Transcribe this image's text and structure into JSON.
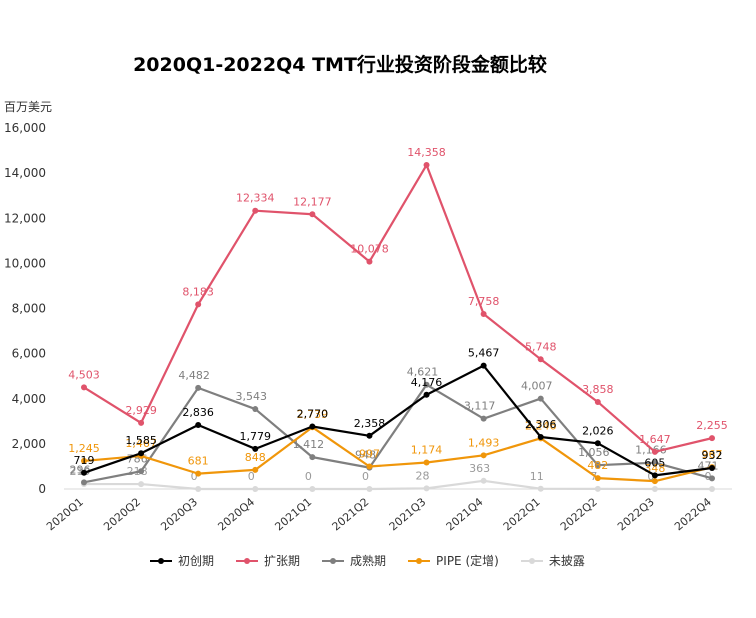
{
  "chart_data": {
    "type": "line",
    "title": "2020Q1-2022Q4 TMT行业投资阶段金额比较",
    "ylabel": "百万美元",
    "ylim": [
      0,
      16000
    ],
    "yticks": [
      "0",
      "2,000",
      "4,000",
      "6,000",
      "8,000",
      "10,000",
      "12,000",
      "14,000",
      "16,000"
    ],
    "grid": false,
    "legend_position": "bottom",
    "categories": [
      "2020Q1",
      "2020Q2",
      "2020Q3",
      "2020Q4",
      "2021Q1",
      "2021Q2",
      "2021Q3",
      "2021Q4",
      "2022Q1",
      "2022Q2",
      "2022Q3",
      "2022Q4"
    ],
    "series": [
      {
        "name": "初创期",
        "color": "#000000",
        "values": [
          719,
          1585,
          2836,
          1779,
          2770,
          2358,
          4176,
          5467,
          2306,
          2026,
          605,
          932
        ],
        "labels": [
          "719",
          "1,585",
          "2,836",
          "1,779",
          "2,770",
          "2,358",
          "4,176",
          "5,467",
          "2,306",
          "2,026",
          "605",
          "932"
        ]
      },
      {
        "name": "扩张期",
        "color": "#e0536b",
        "values": [
          4503,
          2929,
          8183,
          12334,
          12177,
          10078,
          14358,
          7758,
          5748,
          3858,
          1647,
          2255
        ],
        "labels": [
          "4,503",
          "2,929",
          "8,183",
          "12,334",
          "12,177",
          "10,078",
          "14,358",
          "7,758",
          "5,748",
          "3,858",
          "1,647",
          "2,255"
        ]
      },
      {
        "name": "成熟期",
        "color": "#7f7f7f",
        "values": [
          296,
          786,
          4482,
          3543,
          1412,
          948,
          4621,
          3117,
          4007,
          1056,
          1166,
          471
        ],
        "labels": [
          "296",
          "786",
          "4,482",
          "3,543",
          "1,412",
          "948",
          "4,621",
          "3,117",
          "4,007",
          "1,056",
          "1,166",
          "471"
        ]
      },
      {
        "name": "PIPE (定增)",
        "color": "#f0960a",
        "values": [
          1245,
          1467,
          681,
          848,
          2739,
          997,
          1174,
          1493,
          2246,
          482,
          348,
          967
        ],
        "labels": [
          "1,245",
          "1,467",
          "681",
          "848",
          "2,739",
          "997",
          "1,174",
          "1,493",
          "2,246",
          "482",
          "348",
          "967"
        ]
      },
      {
        "name": "未披露",
        "color": "#d9d9d9",
        "values": [
          219,
          218,
          0,
          0,
          0,
          0,
          28,
          363,
          11,
          7,
          0,
          0
        ],
        "labels": [
          "219",
          "218",
          "0",
          "0",
          "0",
          "0",
          "28",
          "363",
          "11",
          "7",
          "0",
          "0"
        ]
      }
    ]
  }
}
